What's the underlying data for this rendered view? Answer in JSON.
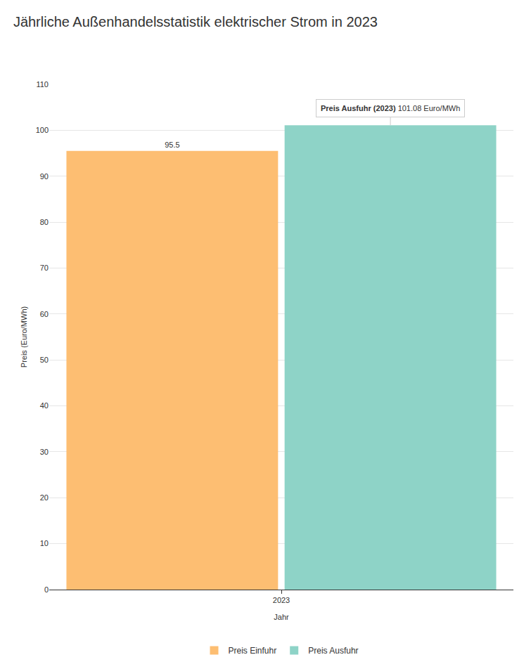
{
  "chart_data": {
    "type": "bar",
    "title": "Jährliche Außenhandelsstatistik elektrischer Strom in 2023",
    "x_label": "Jahr",
    "y_label": "Preis (Euro/MWh)",
    "categories": [
      "2023"
    ],
    "series": [
      {
        "name": "Preis Einfuhr",
        "color": "#fdbe72",
        "values": [
          95.5
        ],
        "data_labels": true
      },
      {
        "name": "Preis Ausfuhr",
        "color": "#8ed3c7",
        "values": [
          101.08
        ],
        "data_labels": false
      }
    ],
    "ylim": [
      0,
      110
    ],
    "yticks": [
      0,
      10,
      20,
      30,
      40,
      50,
      60,
      70,
      80,
      90,
      100,
      110
    ],
    "grid": true,
    "legend": "bottom",
    "annotations": [
      {
        "label": "Preis Ausfuhr (2023)",
        "text": "101.08 Euro/MWh",
        "series": "Preis Ausfuhr",
        "category": "2023"
      }
    ]
  }
}
